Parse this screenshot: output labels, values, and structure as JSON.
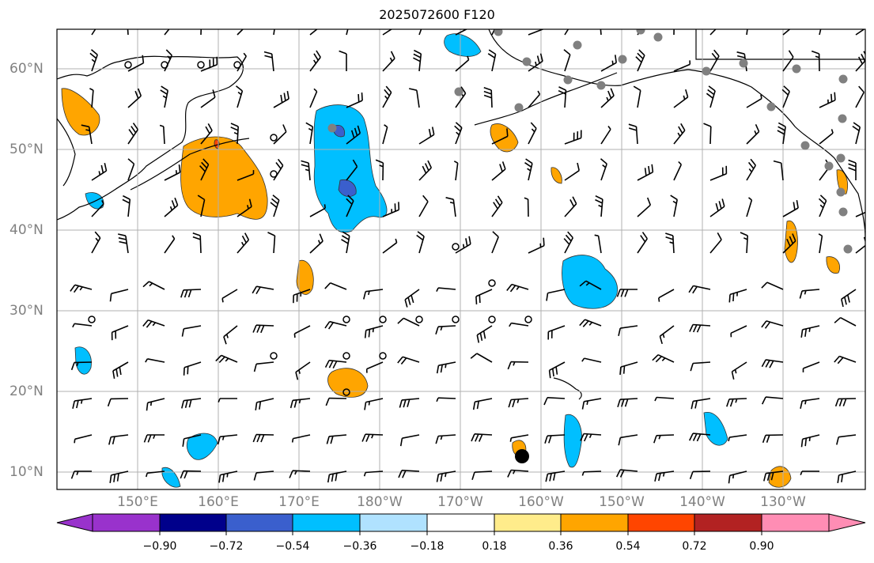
{
  "title": "2025072600 F120",
  "lat_labels": [
    "60°N",
    "50°N",
    "40°N",
    "30°N",
    "20°N",
    "10°N"
  ],
  "lon_labels": [
    "150°E",
    "160°E",
    "170°E",
    "180°W",
    "170°W",
    "160°W",
    "150°W",
    "140°W",
    "130°W"
  ],
  "colorbar": {
    "tick_labels": [
      "−0.90",
      "−0.72",
      "−0.54",
      "−0.36",
      "−0.18",
      "0.18",
      "0.36",
      "0.54",
      "0.72",
      "0.90"
    ],
    "colors": [
      "#9932CC",
      "#00008B",
      "#3A5FCD",
      "#00BFFF",
      "#B0E2FF",
      "#FFFFFF",
      "#FFEC8B",
      "#FFA500",
      "#FF4500",
      "#B22222",
      "#FF8DB4"
    ]
  },
  "map": {
    "projection": "equirectangular",
    "gridlines": true,
    "fill_colors": {
      "positive": "#FFA500",
      "negative": "#00BFFF",
      "strong_negative": "#3A5FCD",
      "strong_positive": "#FF4500"
    },
    "station_marker_color": "#808080",
    "wind_barbs": true
  }
}
